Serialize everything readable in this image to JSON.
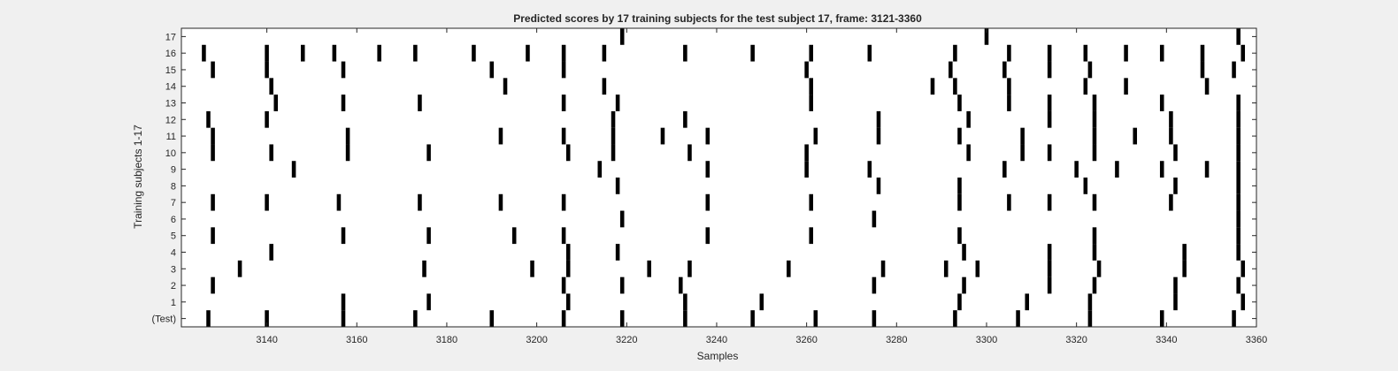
{
  "chart_data": {
    "type": "raster",
    "title": "Predicted scores by 17 training subjects for the test subject 17, frame: 3121-3360",
    "xlabel": "Samples",
    "ylabel": "Training subjects 1-17",
    "xlim": [
      3121,
      3360
    ],
    "x_ticks": [
      3140,
      3160,
      3180,
      3200,
      3220,
      3240,
      3260,
      3280,
      3300,
      3320,
      3340,
      3360
    ],
    "y_tick_labels": [
      "(Test)",
      "1",
      "2",
      "3",
      "4",
      "5",
      "6",
      "7",
      "8",
      "9",
      "10",
      "11",
      "12",
      "13",
      "14",
      "15",
      "16",
      "17"
    ],
    "mark_color": "#000000",
    "rows": [
      {
        "label": "(Test)",
        "samples": [
          3127,
          3140,
          3157,
          3173,
          3190,
          3206,
          3219,
          3233,
          3248,
          3262,
          3275,
          3293,
          3307,
          3323,
          3339,
          3355
        ]
      },
      {
        "label": "1",
        "samples": [
          3157,
          3176,
          3207,
          3233,
          3250,
          3294,
          3309,
          3323,
          3342,
          3357
        ]
      },
      {
        "label": "2",
        "samples": [
          3128,
          3206,
          3219,
          3232,
          3275,
          3295,
          3314,
          3324,
          3342,
          3356
        ]
      },
      {
        "label": "3",
        "samples": [
          3134,
          3175,
          3199,
          3207,
          3225,
          3234,
          3256,
          3277,
          3291,
          3298,
          3314,
          3325,
          3344,
          3357
        ]
      },
      {
        "label": "4",
        "samples": [
          3141,
          3207,
          3218,
          3295,
          3314,
          3324,
          3344,
          3356
        ]
      },
      {
        "label": "5",
        "samples": [
          3128,
          3157,
          3176,
          3195,
          3206,
          3238,
          3261,
          3294,
          3324,
          3356
        ]
      },
      {
        "label": "6",
        "samples": [
          3219,
          3275,
          3356
        ]
      },
      {
        "label": "7",
        "samples": [
          3128,
          3140,
          3156,
          3174,
          3192,
          3206,
          3238,
          3261,
          3294,
          3305,
          3314,
          3324,
          3341,
          3356
        ]
      },
      {
        "label": "8",
        "samples": [
          3218,
          3276,
          3294,
          3322,
          3342,
          3356
        ]
      },
      {
        "label": "9",
        "samples": [
          3146,
          3214,
          3238,
          3260,
          3274,
          3304,
          3320,
          3329,
          3339,
          3349,
          3356
        ]
      },
      {
        "label": "10",
        "samples": [
          3128,
          3141,
          3158,
          3176,
          3207,
          3217,
          3234,
          3260,
          3296,
          3308,
          3314,
          3324,
          3342,
          3356
        ]
      },
      {
        "label": "11",
        "samples": [
          3128,
          3158,
          3192,
          3206,
          3217,
          3228,
          3238,
          3262,
          3276,
          3294,
          3308,
          3324,
          3333,
          3341,
          3356
        ]
      },
      {
        "label": "12",
        "samples": [
          3127,
          3140,
          3217,
          3233,
          3276,
          3296,
          3314,
          3324,
          3341,
          3356
        ]
      },
      {
        "label": "13",
        "samples": [
          3142,
          3157,
          3174,
          3206,
          3218,
          3261,
          3294,
          3305,
          3314,
          3324,
          3339,
          3356
        ]
      },
      {
        "label": "14",
        "samples": [
          3141,
          3193,
          3215,
          3261,
          3288,
          3293,
          3305,
          3322,
          3331,
          3349
        ]
      },
      {
        "label": "15",
        "samples": [
          3128,
          3140,
          3157,
          3190,
          3206,
          3260,
          3292,
          3304,
          3314,
          3323,
          3348,
          3355
        ]
      },
      {
        "label": "16",
        "samples": [
          3126,
          3140,
          3148,
          3155,
          3165,
          3173,
          3186,
          3198,
          3206,
          3215,
          3233,
          3248,
          3261,
          3274,
          3293,
          3305,
          3314,
          3322,
          3331,
          3339,
          3348,
          3357
        ]
      },
      {
        "label": "17",
        "samples": [
          3219,
          3300,
          3356
        ]
      }
    ]
  }
}
